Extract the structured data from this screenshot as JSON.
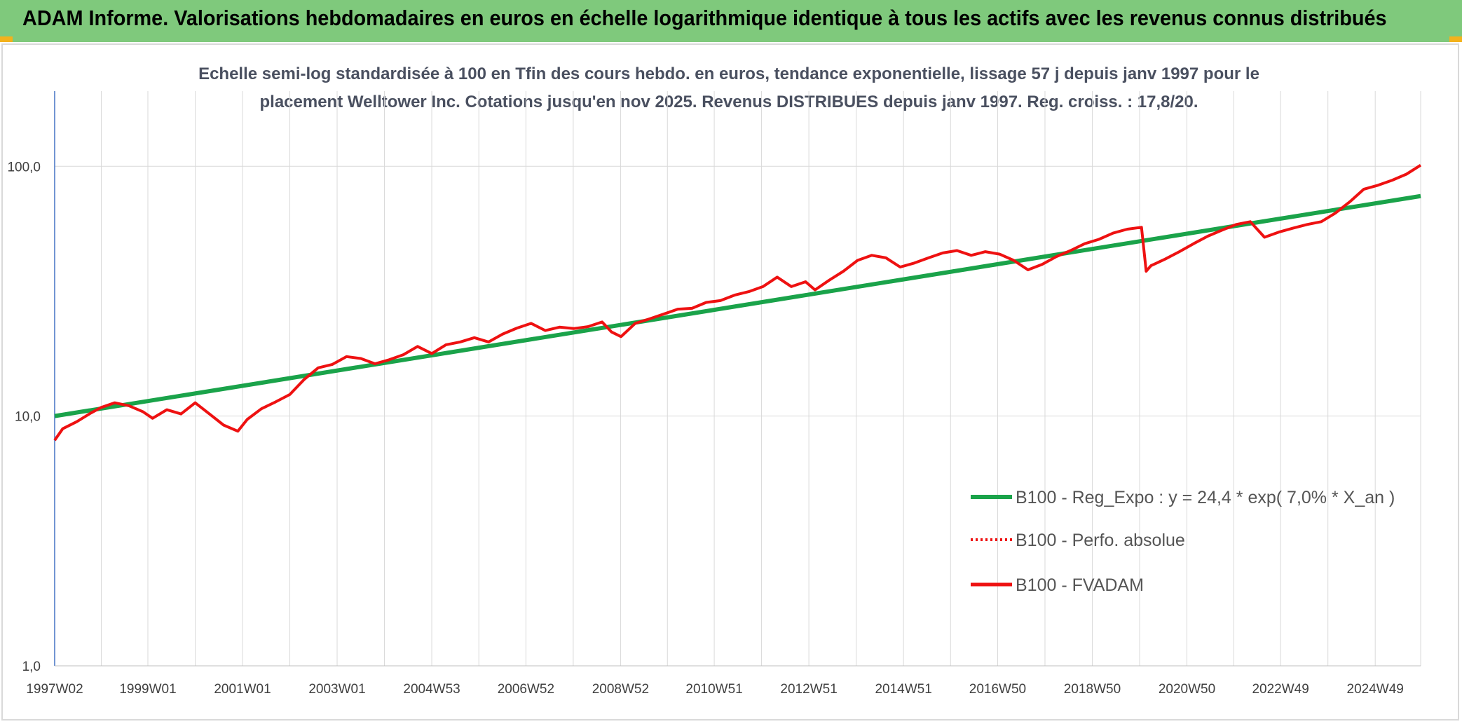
{
  "header": {
    "title": "ADAM Informe. Valorisations hebdomadaires en euros en échelle logarithmique identique à tous les actifs avec les revenus connus distribués"
  },
  "colors": {
    "header_bg": "#7fc97c",
    "regression": "#1aa34a",
    "fvadam": "#ee1111",
    "perfo": "#ee1111",
    "grid": "#d9d9d9"
  },
  "chart_data": {
    "type": "line",
    "title_lines": [
      "Echelle semi-log standardisée à 100 en Tfin des cours hebdo. en euros, tendance exponentielle, lissage 57 j depuis janv 1997 pour le",
      "placement Welltower Inc. Cotations jusqu'en nov 2025. Revenus DISTRIBUES depuis janv 1997. Reg. croiss. : 17,8/20."
    ],
    "y_scale": "log",
    "ylim": [
      1,
      200
    ],
    "xlim": [
      1997.03,
      2025.9
    ],
    "y_ticks": [
      {
        "value": 1,
        "label": "1,0"
      },
      {
        "value": 10,
        "label": "10,0"
      },
      {
        "value": 100,
        "label": "100,0"
      }
    ],
    "x_ticks": [
      {
        "value": 1997.03,
        "label": "1997W02"
      },
      {
        "value": 1999.0,
        "label": "1999W01"
      },
      {
        "value": 2001.0,
        "label": "2001W01"
      },
      {
        "value": 2003.0,
        "label": "2003W01"
      },
      {
        "value": 2005.0,
        "label": "2004W53"
      },
      {
        "value": 2006.99,
        "label": "2006W52"
      },
      {
        "value": 2008.99,
        "label": "2008W52"
      },
      {
        "value": 2010.97,
        "label": "2010W51"
      },
      {
        "value": 2012.97,
        "label": "2012W51"
      },
      {
        "value": 2014.97,
        "label": "2014W51"
      },
      {
        "value": 2016.96,
        "label": "2016W50"
      },
      {
        "value": 2018.96,
        "label": "2018W50"
      },
      {
        "value": 2020.96,
        "label": "2020W50"
      },
      {
        "value": 2022.94,
        "label": "2022W49"
      },
      {
        "value": 2024.94,
        "label": "2024W49"
      }
    ],
    "grid": true,
    "legend_position": "bottom-right",
    "series": [
      {
        "name": "B100 - Reg_Expo : y = 24,4 * exp( 7,0% *  X_an )",
        "style": "solid-thick",
        "x": [
          1997.03,
          2025.9
        ],
        "y": [
          10.0,
          76.0
        ]
      },
      {
        "name": "B100 - Perfo. absolue",
        "style": "dotted",
        "x": [],
        "y": []
      },
      {
        "name": "B100 - FVADAM",
        "style": "solid",
        "x": [
          1997.03,
          1997.2,
          1997.5,
          1997.8,
          1998.0,
          1998.3,
          1998.6,
          1998.9,
          1999.1,
          1999.4,
          1999.7,
          2000.0,
          2000.3,
          2000.6,
          2000.9,
          2001.1,
          2001.4,
          2001.7,
          2002.0,
          2002.3,
          2002.6,
          2002.9,
          2003.2,
          2003.5,
          2003.8,
          2004.1,
          2004.4,
          2004.7,
          2005.0,
          2005.3,
          2005.6,
          2005.9,
          2006.2,
          2006.5,
          2006.8,
          2007.1,
          2007.4,
          2007.7,
          2008.0,
          2008.3,
          2008.6,
          2008.8,
          2009.0,
          2009.3,
          2009.6,
          2009.9,
          2010.2,
          2010.5,
          2010.8,
          2011.1,
          2011.4,
          2011.7,
          2012.0,
          2012.3,
          2012.6,
          2012.9,
          2013.1,
          2013.4,
          2013.7,
          2014.0,
          2014.3,
          2014.6,
          2014.9,
          2015.2,
          2015.5,
          2015.8,
          2016.1,
          2016.4,
          2016.7,
          2017.0,
          2017.3,
          2017.6,
          2017.9,
          2018.2,
          2018.5,
          2018.8,
          2019.1,
          2019.4,
          2019.7,
          2020.0,
          2020.1,
          2020.2,
          2020.5,
          2020.8,
          2021.1,
          2021.4,
          2021.7,
          2022.0,
          2022.3,
          2022.6,
          2022.9,
          2023.2,
          2023.5,
          2023.8,
          2024.1,
          2024.4,
          2024.7,
          2025.0,
          2025.3,
          2025.6,
          2025.9
        ],
        "y": [
          8.0,
          8.9,
          9.5,
          10.3,
          10.8,
          11.3,
          11.0,
          10.4,
          9.8,
          10.6,
          10.2,
          11.3,
          10.2,
          9.2,
          8.7,
          9.7,
          10.7,
          11.4,
          12.2,
          14.0,
          15.6,
          16.1,
          17.3,
          17.0,
          16.2,
          16.8,
          17.6,
          19.0,
          17.8,
          19.3,
          19.8,
          20.6,
          19.8,
          21.3,
          22.5,
          23.5,
          22.0,
          22.7,
          22.4,
          22.8,
          23.8,
          21.7,
          20.8,
          23.5,
          24.5,
          25.6,
          26.8,
          27.0,
          28.5,
          29.0,
          30.5,
          31.5,
          33.0,
          36.0,
          33.0,
          34.5,
          32.0,
          35.0,
          38.0,
          42.0,
          44.0,
          43.0,
          39.5,
          41.0,
          43.0,
          45.0,
          46.0,
          44.0,
          45.5,
          44.5,
          42.0,
          38.5,
          40.5,
          43.5,
          46.0,
          49.0,
          51.0,
          54.0,
          56.0,
          57.0,
          38.0,
          40.0,
          42.5,
          45.5,
          49.0,
          52.5,
          55.5,
          58.5,
          60.0,
          52.0,
          54.5,
          56.5,
          58.5,
          60.0,
          65.0,
          72.0,
          81.0,
          84.0,
          88.0,
          93.0,
          101.0
        ]
      }
    ]
  }
}
